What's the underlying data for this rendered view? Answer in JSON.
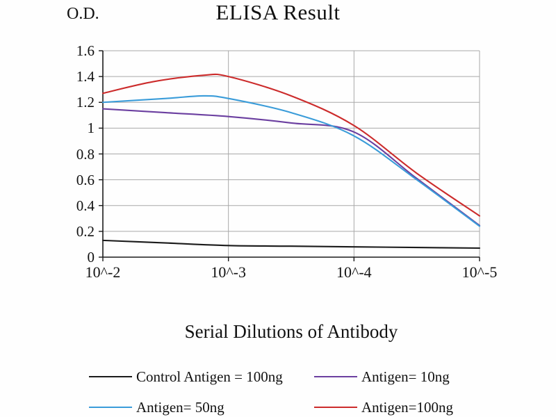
{
  "chart_data": {
    "type": "line",
    "title": "ELISA Result",
    "ylabel": "O.D.",
    "xlabel": "Serial Dilutions of Antibody",
    "x_tick_labels": [
      "10^-2",
      "10^-3",
      "10^-4",
      "10^-5"
    ],
    "yticks": [
      "0",
      "0.2",
      "0.4",
      "0.6",
      "0.8",
      "1",
      "1.2",
      "1.4",
      "1.6"
    ],
    "ylim": [
      0,
      1.6
    ],
    "grid": true,
    "legend_position": "bottom",
    "colors": {
      "grid": "#a8a8a8",
      "axis": "#1a1a1a"
    },
    "series": [
      {
        "name": "Control Antigen = 100ng",
        "color": "#1a1a1a",
        "x": [
          0,
          0.5,
          1,
          1.5,
          2,
          2.5,
          3
        ],
        "values": [
          0.13,
          0.11,
          0.09,
          0.085,
          0.08,
          0.075,
          0.07
        ]
      },
      {
        "name": "Antigen= 10ng",
        "color": "#6b3fa0",
        "x": [
          0,
          0.5,
          1,
          1.5,
          2,
          2.5,
          3
        ],
        "values": [
          1.15,
          1.12,
          1.09,
          1.04,
          0.97,
          0.61,
          0.245
        ]
      },
      {
        "name": "Antigen= 50ng",
        "color": "#3a9cd9",
        "x": [
          0,
          0.5,
          0.8,
          1,
          1.5,
          2,
          2.5,
          3
        ],
        "values": [
          1.2,
          1.23,
          1.25,
          1.23,
          1.12,
          0.94,
          0.6,
          0.24
        ]
      },
      {
        "name": "Antigen=100ng",
        "color": "#cc2b2b",
        "x": [
          0,
          0.4,
          0.8,
          1,
          1.5,
          2,
          2.5,
          3
        ],
        "values": [
          1.27,
          1.36,
          1.41,
          1.4,
          1.25,
          1.02,
          0.65,
          0.32
        ]
      }
    ]
  }
}
